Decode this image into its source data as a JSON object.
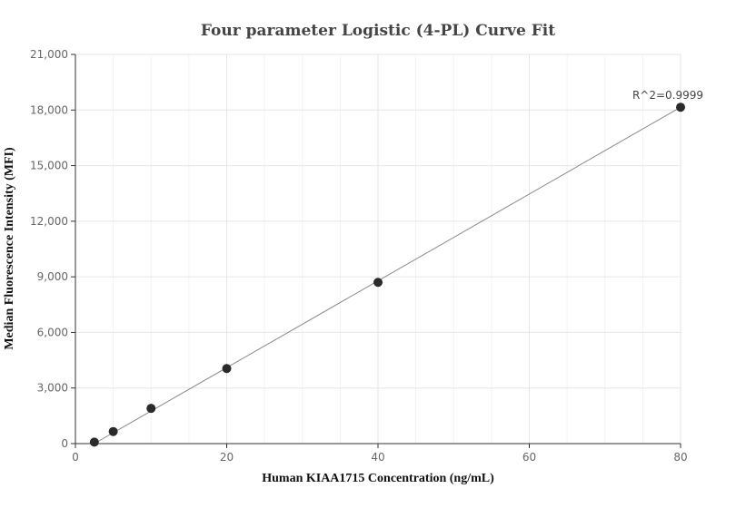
{
  "chart_data": {
    "type": "scatter",
    "title": "Four parameter Logistic (4-PL) Curve Fit",
    "xlabel": "Human KIAA1715 Concentration (ng/mL)",
    "ylabel": "Median Fluorescence Intensity (MFI)",
    "xlim": [
      0,
      80
    ],
    "ylim": [
      0,
      21000
    ],
    "x_ticks": [
      0,
      20,
      40,
      60,
      80
    ],
    "y_ticks": [
      0,
      3000,
      6000,
      9000,
      12000,
      15000,
      18000,
      21000
    ],
    "x_tick_labels": [
      "0",
      "20",
      "40",
      "60",
      "80"
    ],
    "y_tick_labels": [
      "0",
      "3,000",
      "6,000",
      "9,000",
      "12,000",
      "15,000",
      "18,000",
      "21,000"
    ],
    "grid": true,
    "series": [
      {
        "points": [
          {
            "x": 2.5,
            "y": 80
          },
          {
            "x": 5,
            "y": 650
          },
          {
            "x": 10,
            "y": 1900
          },
          {
            "x": 20,
            "y": 4050
          },
          {
            "x": 40,
            "y": 8700
          },
          {
            "x": 80,
            "y": 18150
          }
        ]
      }
    ],
    "fit_curve": {
      "type": "4-PL",
      "x": [
        2.5,
        80
      ],
      "y": [
        0,
        18150
      ]
    },
    "annotations": [
      {
        "text": "R^2=0.9999",
        "x": 80,
        "y": 18150
      }
    ],
    "colors": {
      "marker": "#2a2a2a",
      "fit_line": "#8a8a8a",
      "grid": "#e6e6e6",
      "axis": "#333333"
    }
  }
}
